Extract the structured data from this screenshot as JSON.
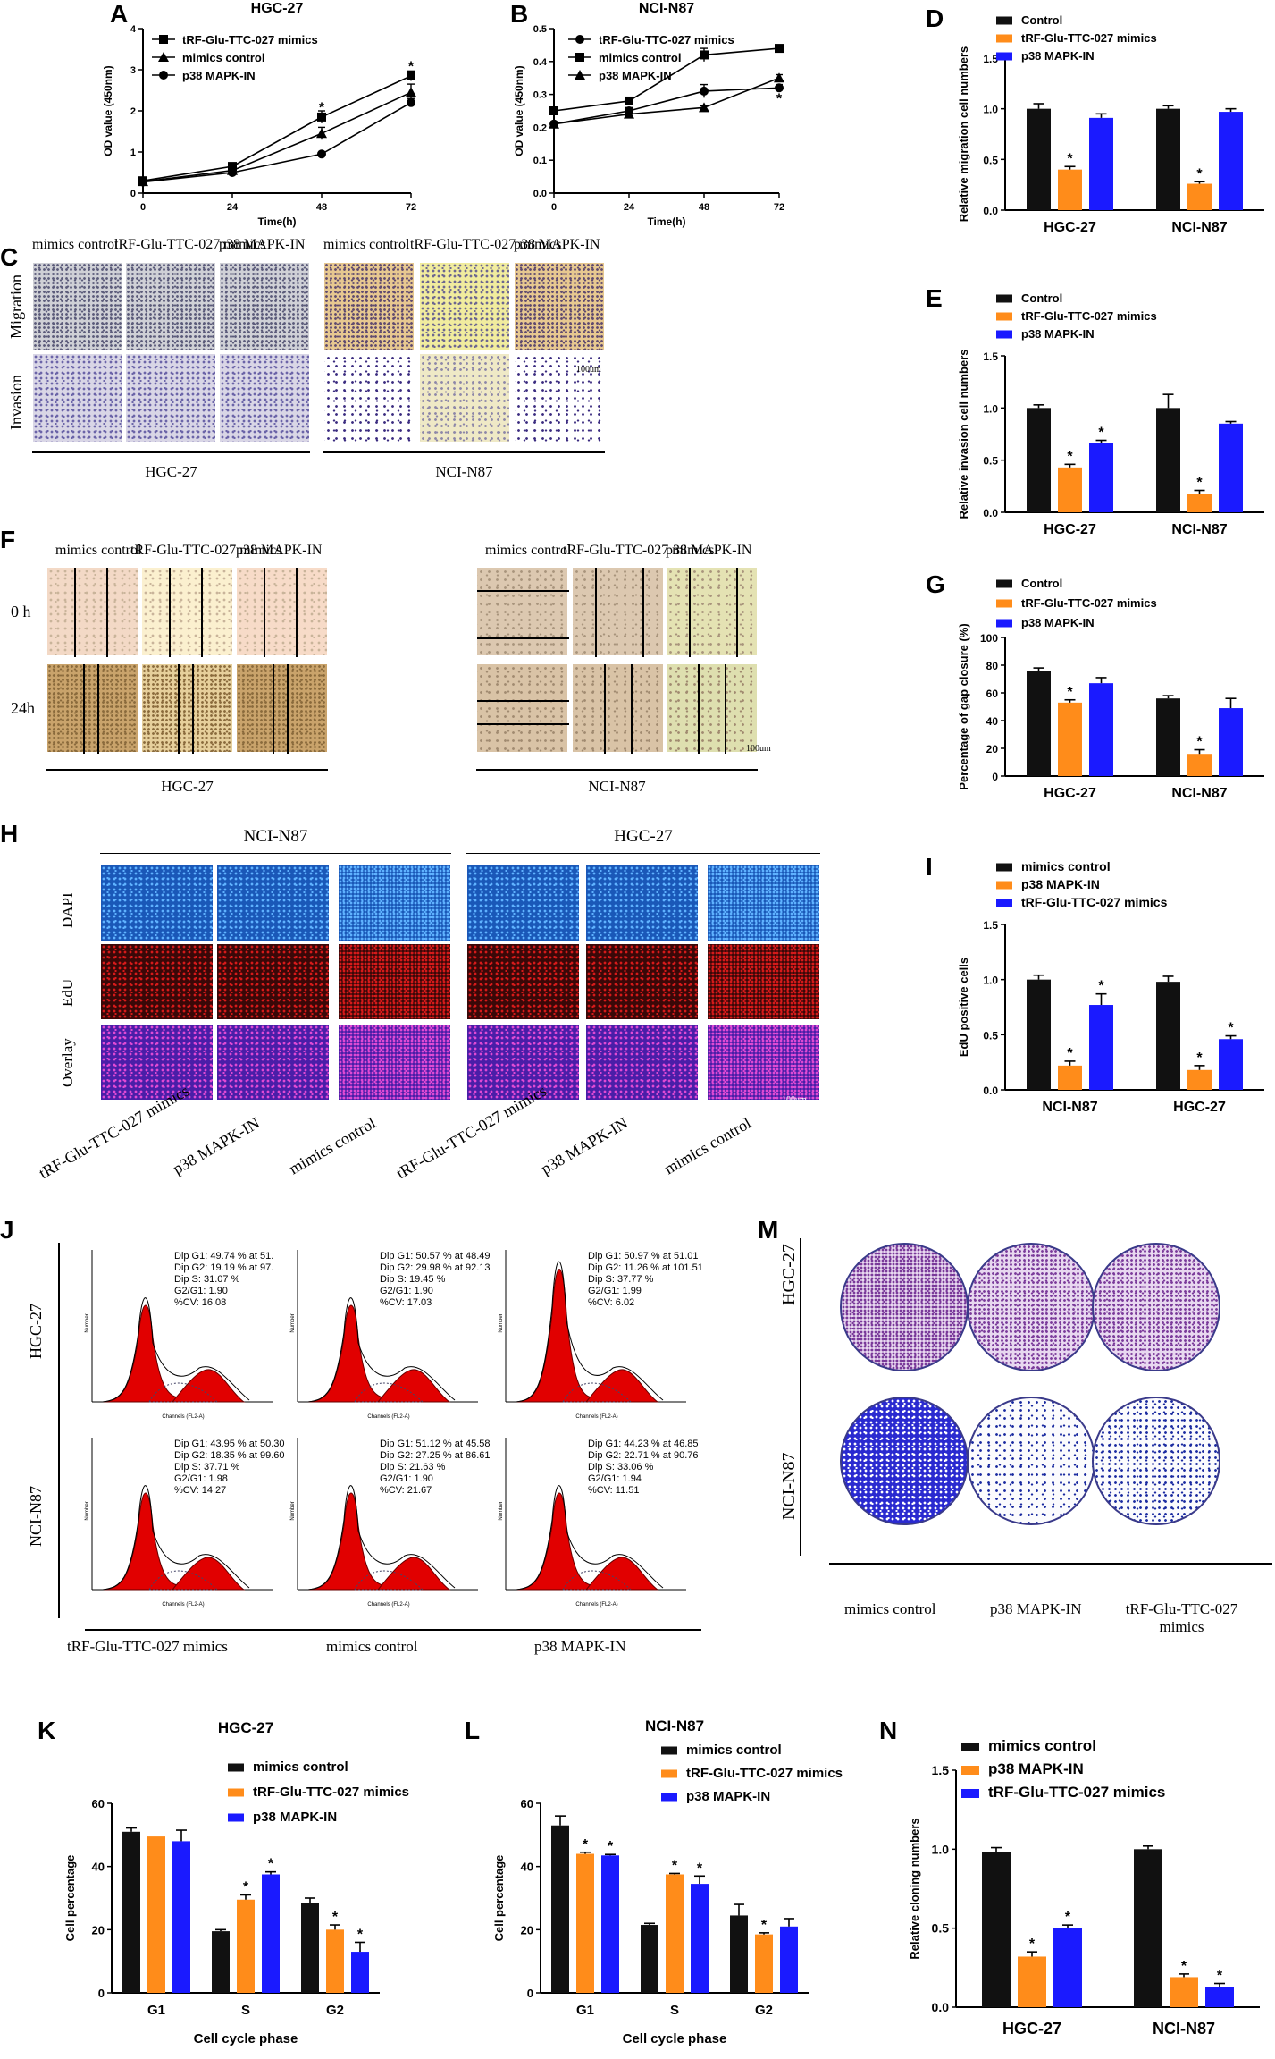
{
  "panels": {
    "A": {
      "letter": "A"
    },
    "B": {
      "letter": "B"
    },
    "C": {
      "letter": "C"
    },
    "D": {
      "letter": "D"
    },
    "E": {
      "letter": "E"
    },
    "F": {
      "letter": "F"
    },
    "G": {
      "letter": "G"
    },
    "H": {
      "letter": "H"
    },
    "I": {
      "letter": "I"
    },
    "J": {
      "letter": "J"
    },
    "K": {
      "letter": "K"
    },
    "L": {
      "letter": "L"
    },
    "M": {
      "letter": "M"
    },
    "N": {
      "letter": "N"
    }
  },
  "panelC": {
    "cols_left": [
      "mimics control",
      "tRF-Glu-TTC-027 mimics",
      "p38 MAPK-IN"
    ],
    "cols_right": [
      "mimics control",
      "tRF-Glu-TTC-027 mimics",
      "p38 MAPK-IN"
    ],
    "rows": [
      "Migration",
      "Invasion"
    ],
    "group_left": "HGC-27",
    "group_right": "NCI-N87",
    "scale": "100um"
  },
  "panelF": {
    "cols_left": [
      "mimics control",
      "tRF-Glu-TTC-027 mimics",
      "p38 MAPK-IN"
    ],
    "cols_right": [
      "mimics control",
      "tRF-Glu-TTC-027 mimics",
      "p38 MAPK-IN"
    ],
    "rows": [
      "0 h",
      "24h"
    ],
    "group_left": "HGC-27",
    "group_right": "NCI-N87",
    "scale": "100um"
  },
  "panelH": {
    "group_left": "NCI-N87",
    "group_right": "HGC-27",
    "rows": [
      "DAPI",
      "EdU",
      "Overlay"
    ],
    "cols": [
      "tRF-Glu-TTC-027 mimics",
      "p38 MAPK-IN",
      "mimics control",
      "tRF-Glu-TTC-027 mimics",
      "p38 MAPK-IN",
      "mimics control"
    ],
    "scale": "100um"
  },
  "panelJ": {
    "rows": [
      "HGC-27",
      "NCI-N87"
    ],
    "cols": [
      "tRF-Glu-TTC-027 mimics",
      "mimics control",
      "p38 MAPK-IN"
    ],
    "xaxis_label": "Channels (FL2-A)",
    "yaxis_label": "Number",
    "stats": [
      [
        "Dip G1: 49.74 % at 51.",
        "Dip G2: 19.19 % at 97.",
        "Dip S: 31.07 %",
        "G2/G1: 1.90",
        "%CV: 16.08"
      ],
      [
        "Dip G1: 50.57 % at 48.49",
        "Dip G2: 29.98 % at 92.13",
        "Dip S: 19.45 %",
        "G2/G1: 1.90",
        "%CV: 17.03"
      ],
      [
        "Dip G1: 50.97 % at 51.01",
        "Dip G2: 11.26 % at 101.51",
        "Dip S: 37.77 %",
        "G2/G1: 1.99",
        "%CV: 6.02"
      ],
      [
        "Dip G1: 43.95 % at 50.30",
        "Dip G2: 18.35 % at 99.60",
        "Dip S: 37.71 %",
        "G2/G1: 1.98",
        "%CV: 14.27"
      ],
      [
        "Dip G1: 51.12 % at 45.58",
        "Dip G2: 27.25 % at 86.61",
        "Dip S: 21.63 %",
        "G2/G1: 1.90",
        "%CV: 21.67"
      ],
      [
        "Dip G1: 44.23 % at 46.85",
        "Dip G2: 22.71 % at 90.76",
        "Dip S: 33.06 %",
        "G2/G1: 1.94",
        "%CV: 11.51"
      ]
    ]
  },
  "panelM": {
    "rows": [
      "HGC-27",
      "NCI-N87"
    ],
    "cols": [
      "mimics control",
      "p38 MAPK-IN",
      "tRF-Glu-TTC-027 mimics"
    ]
  },
  "colors": {
    "black": "#111111",
    "orange": "#ff8c1a",
    "blue": "#1a1aff"
  },
  "chart_data": [
    {
      "id": "A",
      "type": "line",
      "title": "HGC-27",
      "xlabel": "Time(h)",
      "ylabel": "OD value (450nm)",
      "x": [
        0,
        24,
        48,
        72
      ],
      "xticks": [
        "0",
        "24",
        "48",
        "72"
      ],
      "ylim": [
        0,
        4
      ],
      "yticks": [
        "0",
        "1",
        "2",
        "3",
        "4"
      ],
      "series": [
        {
          "name": "tRF-Glu-TTC-027 mimics",
          "marker": "square",
          "values": [
            0.3,
            0.65,
            1.85,
            2.85
          ],
          "err": [
            0.03,
            0.05,
            0.15,
            0.12
          ]
        },
        {
          "name": "mimics control",
          "marker": "triangle",
          "values": [
            0.28,
            0.55,
            1.45,
            2.45
          ],
          "err": [
            0.03,
            0.05,
            0.15,
            0.2
          ]
        },
        {
          "name": "p38 MAPK-IN",
          "marker": "circle",
          "values": [
            0.27,
            0.5,
            0.95,
            2.2
          ],
          "err": [
            0.03,
            0.05,
            0.05,
            0.1
          ]
        }
      ],
      "stars": [
        {
          "x": 48,
          "y": 2.1
        },
        {
          "x": 72,
          "y": 3.1
        }
      ]
    },
    {
      "id": "B",
      "type": "line",
      "title": "NCI-N87",
      "xlabel": "Time(h)",
      "ylabel": "OD value (450nm)",
      "x": [
        0,
        24,
        48,
        72
      ],
      "xticks": [
        "0",
        "24",
        "48",
        "72"
      ],
      "ylim": [
        0,
        0.5
      ],
      "yticks": [
        "0.0",
        "0.1",
        "0.2",
        "0.3",
        "0.4",
        "0.5"
      ],
      "series": [
        {
          "name": "tRF-Glu-TTC-027 mimics",
          "marker": "circle",
          "values": [
            0.21,
            0.25,
            0.31,
            0.32
          ],
          "err": [
            0.005,
            0.01,
            0.02,
            0.01
          ]
        },
        {
          "name": "mimics control",
          "marker": "square",
          "values": [
            0.25,
            0.28,
            0.42,
            0.44
          ],
          "err": [
            0.005,
            0.01,
            0.02,
            0.01
          ]
        },
        {
          "name": "p38 MAPK-IN",
          "marker": "triangle",
          "values": [
            0.21,
            0.24,
            0.26,
            0.35
          ],
          "err": [
            0.005,
            0.005,
            0.005,
            0.01
          ]
        }
      ],
      "stars": [
        {
          "x": 72,
          "y": 0.29
        }
      ]
    },
    {
      "id": "D",
      "type": "bar",
      "ylabel": "Relative migration cell numbers",
      "categories": [
        "HGC-27",
        "NCI-N87"
      ],
      "ylim": [
        0,
        1.5
      ],
      "yticks": [
        "0.0",
        "0.5",
        "1.0",
        "1.5"
      ],
      "series": [
        {
          "name": "Control",
          "values": [
            1.0,
            1.0
          ],
          "err": [
            0.05,
            0.03
          ]
        },
        {
          "name": "tRF-Glu-TTC-027 mimics",
          "values": [
            0.4,
            0.26
          ],
          "err": [
            0.03,
            0.02
          ]
        },
        {
          "name": "p38 MAPK-IN",
          "values": [
            0.91,
            0.97
          ],
          "err": [
            0.04,
            0.03
          ]
        }
      ],
      "stars": [
        [
          false,
          true,
          false
        ],
        [
          false,
          true,
          false
        ]
      ]
    },
    {
      "id": "E",
      "type": "bar",
      "ylabel": "Relative invasion cell numbers",
      "categories": [
        "HGC-27",
        "NCI-N87"
      ],
      "ylim": [
        0,
        1.5
      ],
      "yticks": [
        "0.0",
        "0.5",
        "1.0",
        "1.5"
      ],
      "series": [
        {
          "name": "Control",
          "values": [
            1.0,
            1.0
          ],
          "err": [
            0.03,
            0.13
          ]
        },
        {
          "name": "tRF-Glu-TTC-027 mimics",
          "values": [
            0.43,
            0.18
          ],
          "err": [
            0.03,
            0.03
          ]
        },
        {
          "name": "p38 MAPK-IN",
          "values": [
            0.66,
            0.85
          ],
          "err": [
            0.03,
            0.02
          ]
        }
      ],
      "stars": [
        [
          false,
          true,
          true
        ],
        [
          false,
          true,
          false
        ]
      ]
    },
    {
      "id": "G",
      "type": "bar",
      "ylabel": "Percentage of gap closure (%)",
      "categories": [
        "HGC-27",
        "NCI-N87"
      ],
      "ylim": [
        0,
        100
      ],
      "yticks": [
        "0",
        "20",
        "40",
        "60",
        "80",
        "100"
      ],
      "series": [
        {
          "name": "Control",
          "values": [
            76,
            56
          ],
          "err": [
            2,
            2
          ]
        },
        {
          "name": "tRF-Glu-TTC-027 mimics",
          "values": [
            53,
            16
          ],
          "err": [
            2,
            3
          ]
        },
        {
          "name": "p38 MAPK-IN",
          "values": [
            67,
            49
          ],
          "err": [
            4,
            7
          ]
        }
      ],
      "stars": [
        [
          false,
          true,
          false
        ],
        [
          false,
          true,
          false
        ]
      ]
    },
    {
      "id": "I",
      "type": "bar",
      "ylabel": "EdU positive cells",
      "categories": [
        "NCI-N87",
        "HGC-27"
      ],
      "ylim": [
        0,
        1.5
      ],
      "yticks": [
        "0.0",
        "0.5",
        "1.0",
        "1.5"
      ],
      "series": [
        {
          "name": "mimics control",
          "values": [
            1.0,
            0.98
          ],
          "err": [
            0.04,
            0.05
          ]
        },
        {
          "name": "p38 MAPK-IN",
          "values": [
            0.22,
            0.18
          ],
          "err": [
            0.04,
            0.04
          ]
        },
        {
          "name": "tRF-Glu-TTC-027 mimics",
          "values": [
            0.77,
            0.46
          ],
          "err": [
            0.1,
            0.03
          ]
        }
      ],
      "stars": [
        [
          false,
          true,
          true
        ],
        [
          false,
          true,
          true
        ]
      ]
    },
    {
      "id": "K",
      "type": "bar",
      "title": "HGC-27",
      "ylabel": "Cell percentage",
      "xlabel": "Cell cycle phase",
      "categories": [
        "G1",
        "S",
        "G2"
      ],
      "ylim": [
        0,
        60
      ],
      "yticks": [
        "0",
        "20",
        "40",
        "60"
      ],
      "series": [
        {
          "name": "mimics control",
          "values": [
            51,
            19.5,
            28.5
          ],
          "err": [
            1.2,
            0.5,
            1.5
          ]
        },
        {
          "name": "tRF-Glu-TTC-027 mimics",
          "values": [
            49.5,
            29.5,
            20
          ],
          "err": [
            0,
            1.5,
            1.5
          ]
        },
        {
          "name": "p38 MAPK-IN",
          "values": [
            48,
            37.5,
            13
          ],
          "err": [
            3.5,
            0.8,
            3
          ]
        }
      ],
      "stars": [
        [
          false,
          false,
          false
        ],
        [
          false,
          true,
          true
        ],
        [
          false,
          true,
          true
        ]
      ]
    },
    {
      "id": "L",
      "type": "bar",
      "title": "NCI-N87",
      "ylabel": "Cell percentage",
      "xlabel": "Cell cycle phase",
      "categories": [
        "G1",
        "S",
        "G2"
      ],
      "ylim": [
        0,
        60
      ],
      "yticks": [
        "0",
        "20",
        "40",
        "60"
      ],
      "series": [
        {
          "name": "mimics control",
          "values": [
            53,
            21.5,
            24.5
          ],
          "err": [
            3,
            0.5,
            3.5
          ]
        },
        {
          "name": "tRF-Glu-TTC-027 mimics",
          "values": [
            44,
            37.5,
            18.5
          ],
          "err": [
            0.5,
            0.3,
            0.5
          ]
        },
        {
          "name": "p38 MAPK-IN",
          "values": [
            43.5,
            34.5,
            21
          ],
          "err": [
            0.3,
            2.5,
            2.5
          ]
        }
      ],
      "stars": [
        [
          false,
          true,
          true
        ],
        [
          false,
          true,
          true
        ],
        [
          false,
          true,
          false
        ]
      ]
    },
    {
      "id": "N",
      "type": "bar",
      "ylabel": "Relative cloning numbers",
      "categories": [
        "HGC-27",
        "NCI-N87"
      ],
      "ylim": [
        0,
        1.5
      ],
      "yticks": [
        "0.0",
        "0.5",
        "1.0",
        "1.5"
      ],
      "series": [
        {
          "name": "mimics control",
          "values": [
            0.98,
            1.0
          ],
          "err": [
            0.03,
            0.02
          ]
        },
        {
          "name": "p38 MAPK-IN",
          "values": [
            0.32,
            0.19
          ],
          "err": [
            0.03,
            0.02
          ]
        },
        {
          "name": "tRF-Glu-TTC-027 mimics",
          "values": [
            0.5,
            0.13
          ],
          "err": [
            0.02,
            0.02
          ]
        }
      ],
      "stars": [
        [
          false,
          true,
          true
        ],
        [
          false,
          true,
          true
        ]
      ]
    }
  ]
}
